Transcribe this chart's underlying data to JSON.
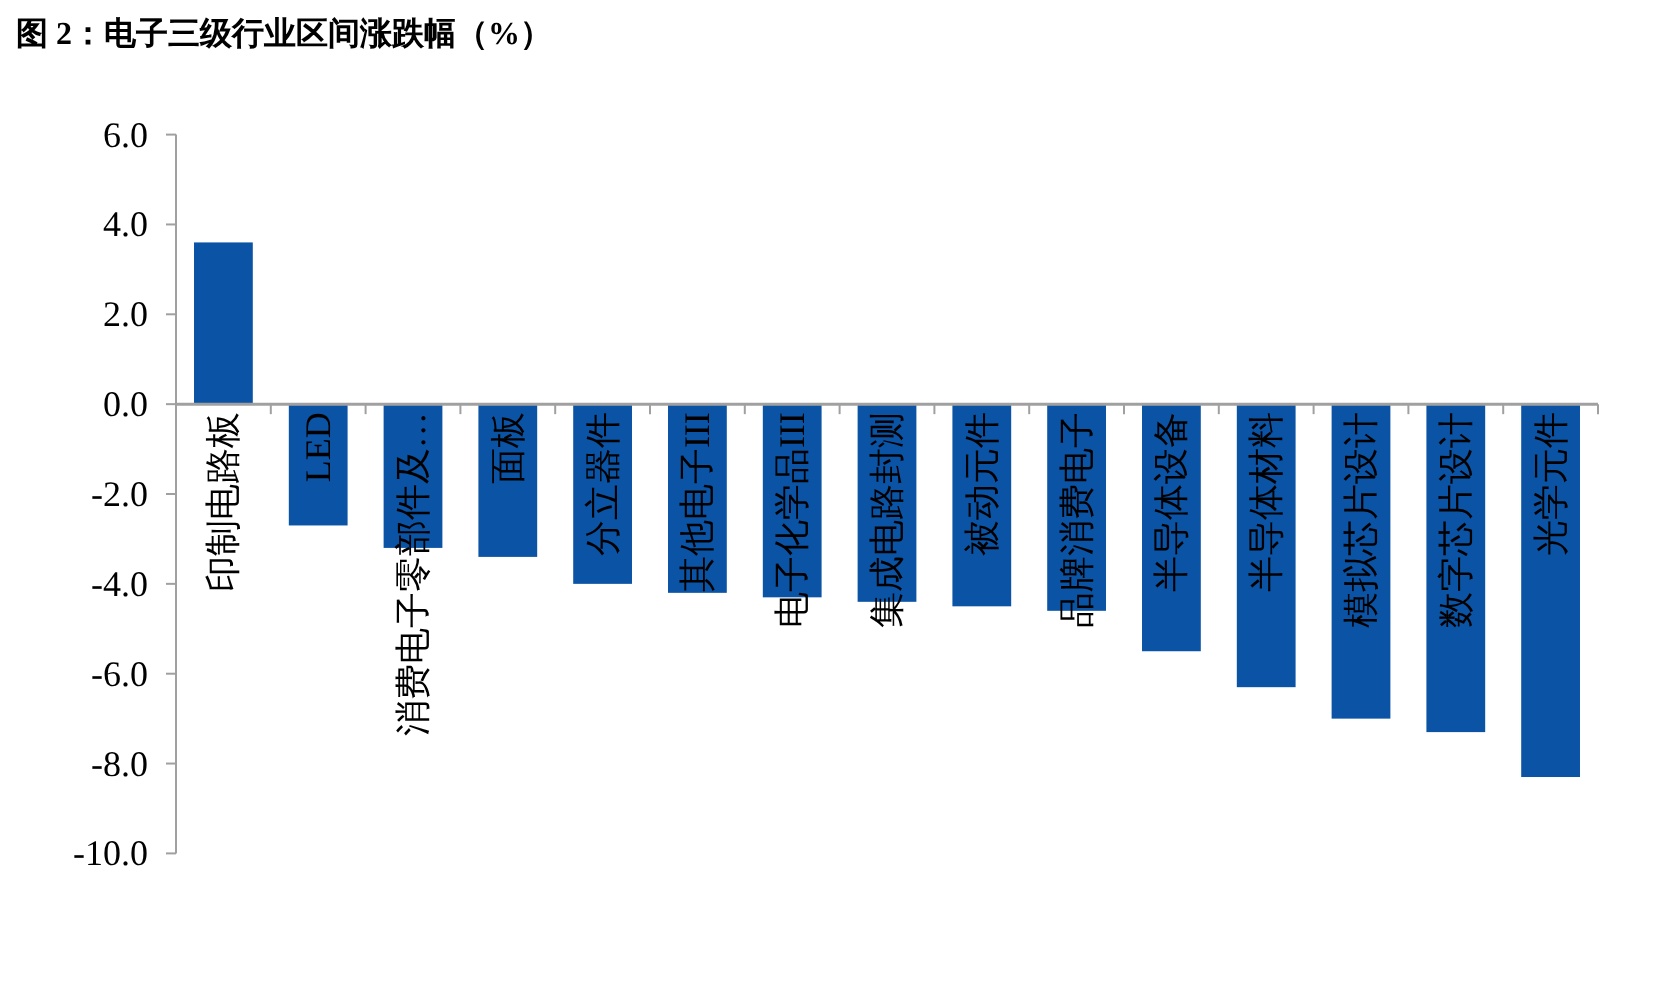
{
  "chart_data": {
    "type": "bar",
    "title": "图 2：电子三级行业区间涨跌幅（%）",
    "categories": [
      "印制电路板",
      "LED",
      "消费电子零部件及…",
      "面板",
      "分立器件",
      "其他电子III",
      "电子化学品III",
      "集成电路封测",
      "被动元件",
      "品牌消费电子",
      "半导体设备",
      "半导体材料",
      "模拟芯片设计",
      "数字芯片设计",
      "光学元件"
    ],
    "values": [
      3.6,
      -2.7,
      -3.2,
      -3.4,
      -4.0,
      -4.2,
      -4.3,
      -4.4,
      -4.5,
      -4.6,
      -5.5,
      -6.3,
      -7.0,
      -7.3,
      -8.3
    ],
    "color": "#0b53a5",
    "ylim": [
      -10,
      6
    ],
    "yticks": [
      {
        "value": 6,
        "label": "6.0"
      },
      {
        "value": 4,
        "label": "4.0"
      },
      {
        "value": 2,
        "label": "2.0"
      },
      {
        "value": 0,
        "label": "0.0"
      },
      {
        "value": -2,
        "label": "-2.0"
      },
      {
        "value": -4,
        "label": "-4.0"
      },
      {
        "value": -6,
        "label": "-6.0"
      },
      {
        "value": -8,
        "label": "-8.0"
      },
      {
        "value": -10,
        "label": "-10.0"
      }
    ],
    "legend": false,
    "grid": false
  }
}
